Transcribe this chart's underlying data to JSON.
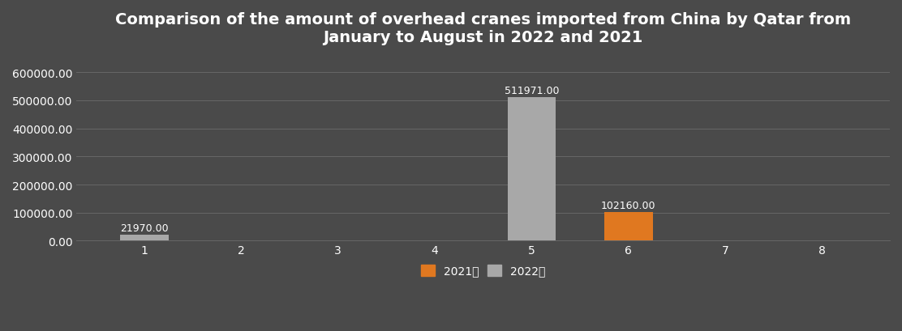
{
  "title": "Comparison of the amount of overhead cranes imported from China by Qatar from\nJanuary to August in 2022 and 2021",
  "months": [
    1,
    2,
    3,
    4,
    5,
    6,
    7,
    8
  ],
  "data_2021_orange": [
    0,
    0,
    0,
    0,
    0,
    102160.0,
    0,
    0
  ],
  "data_2022_gray": [
    21970.0,
    0,
    0,
    0,
    511971.0,
    0,
    0,
    0
  ],
  "color_orange": "#e07820",
  "color_gray": "#a8a8a8",
  "background_color": "#4a4a4a",
  "text_color": "#ffffff",
  "grid_color": "#666666",
  "ylim": [
    0,
    650000
  ],
  "yticks": [
    0,
    100000,
    200000,
    300000,
    400000,
    500000,
    600000
  ],
  "legend_orange": "2021年",
  "legend_gray": "2022年",
  "bar_width": 0.5,
  "title_fontsize": 14,
  "tick_fontsize": 10,
  "label_fontsize": 9
}
